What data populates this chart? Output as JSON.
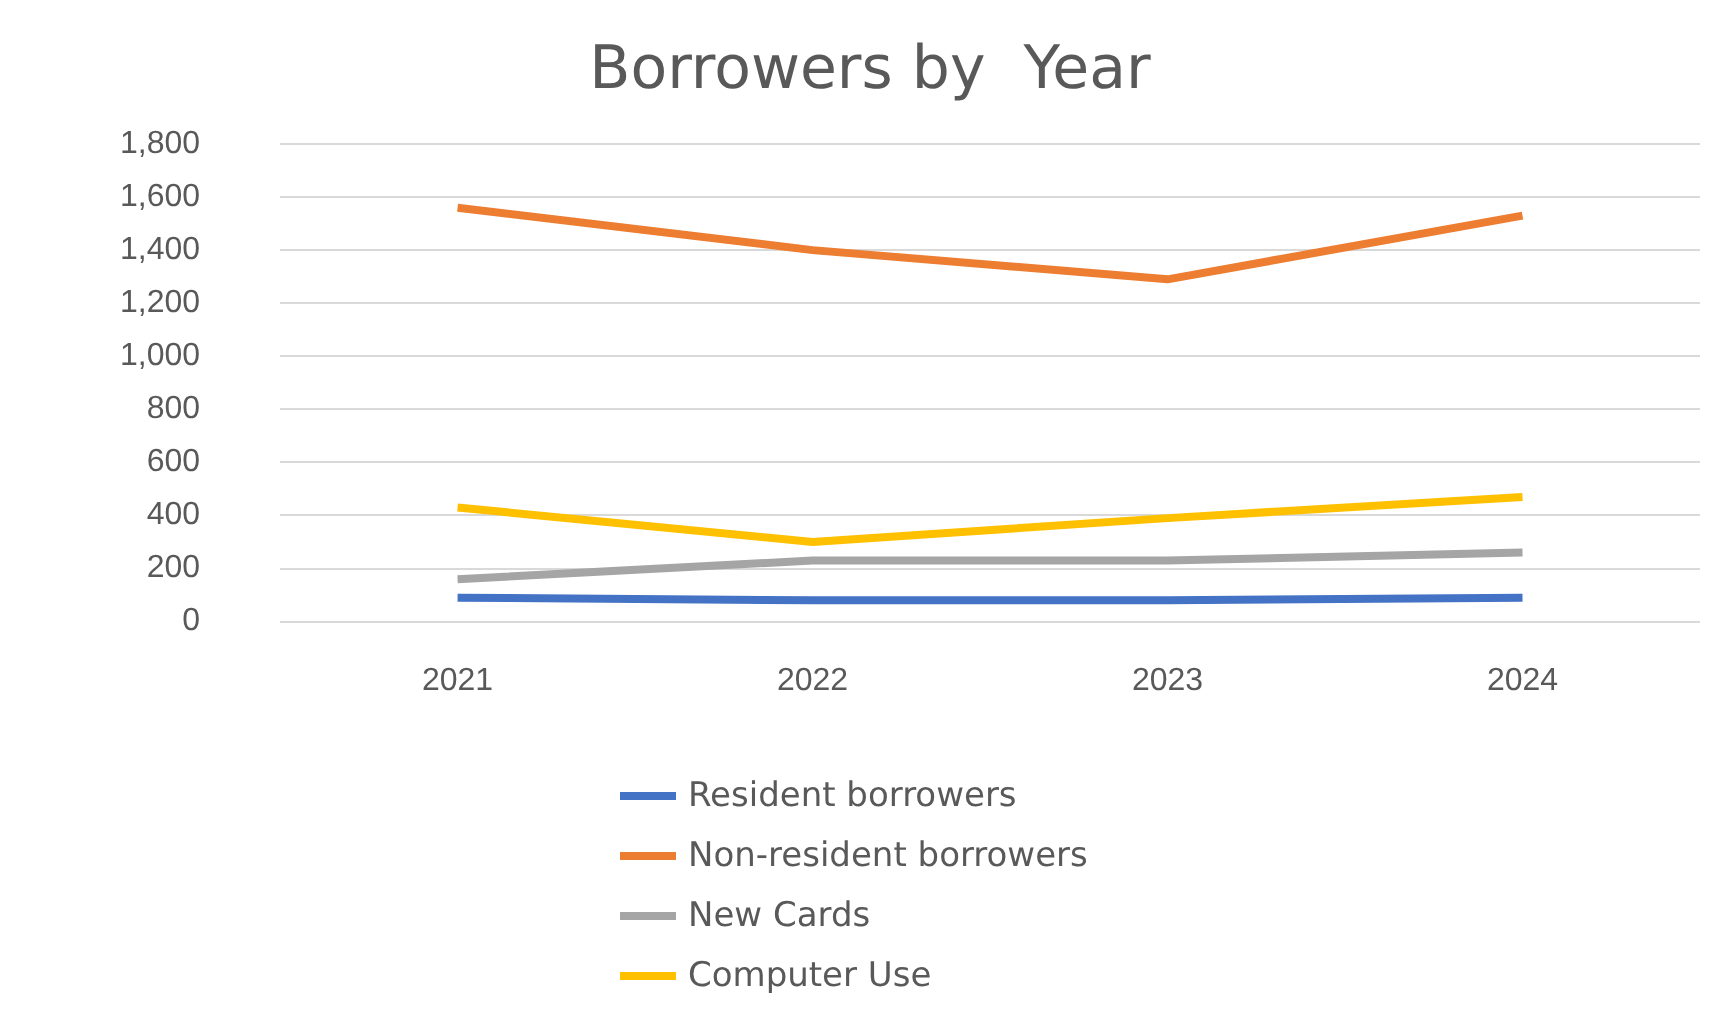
{
  "chart_data": {
    "type": "line",
    "title": "Borrowers by  Year",
    "categories": [
      "2021",
      "2022",
      "2023",
      "2024"
    ],
    "series": [
      {
        "name": "Resident borrowers",
        "color": "#4472c4",
        "values": [
          90,
          80,
          80,
          90
        ]
      },
      {
        "name": "Non-resident borrowers",
        "color": "#ed7d31",
        "values": [
          1560,
          1400,
          1290,
          1530
        ]
      },
      {
        "name": "New Cards",
        "color": "#a5a5a5",
        "values": [
          160,
          230,
          230,
          260
        ]
      },
      {
        "name": "Computer Use",
        "color": "#ffc000",
        "values": [
          430,
          300,
          390,
          470
        ]
      }
    ],
    "ylim": [
      0,
      1800
    ],
    "yticks": [
      0,
      200,
      400,
      600,
      800,
      {
        "value": 1000,
        "label": "1,000"
      },
      {
        "value": 1200,
        "label": "1,200"
      },
      {
        "value": 1400,
        "label": "1,400"
      },
      {
        "value": 1600,
        "label": "1,600"
      },
      {
        "value": 1800,
        "label": "1,800"
      }
    ],
    "grid": "y",
    "legend": "bottom",
    "marker": "none",
    "line_style": "solid"
  }
}
